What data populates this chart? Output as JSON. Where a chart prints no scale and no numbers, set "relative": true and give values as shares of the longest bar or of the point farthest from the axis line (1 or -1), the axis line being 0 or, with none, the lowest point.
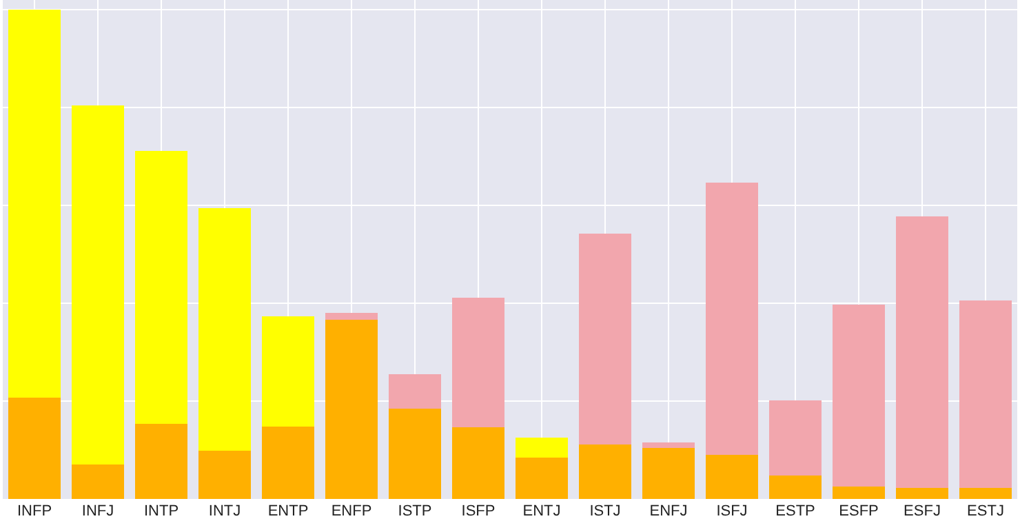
{
  "chart_data": {
    "type": "bar",
    "relative": true,
    "grid": true,
    "stacked": true,
    "categories": [
      "INFP",
      "INFJ",
      "INTP",
      "INTJ",
      "ENTP",
      "ENFP",
      "ISTP",
      "ISFP",
      "ENTJ",
      "ISTJ",
      "ENFJ",
      "ISFJ",
      "ESTP",
      "ESFP",
      "ESFJ",
      "ESTJ"
    ],
    "series": [
      {
        "color": "#ffb000",
        "values": [
          0.207,
          0.07,
          0.154,
          0.098,
          0.148,
          0.367,
          0.185,
          0.146,
          0.084,
          0.112,
          0.104,
          0.09,
          0.048,
          0.025,
          0.022,
          0.022
        ]
      },
      {
        "color": "#ffff00",
        "values": [
          0.793,
          0.734,
          0.557,
          0.496,
          0.225,
          null,
          null,
          null,
          0.042,
          null,
          null,
          null,
          null,
          null,
          null,
          null
        ]
      },
      {
        "color": "#f2a6ad",
        "values": [
          null,
          null,
          null,
          null,
          null,
          0.014,
          0.07,
          0.266,
          null,
          0.431,
          0.011,
          0.557,
          0.154,
          0.373,
          0.555,
          0.384
        ]
      }
    ]
  }
}
